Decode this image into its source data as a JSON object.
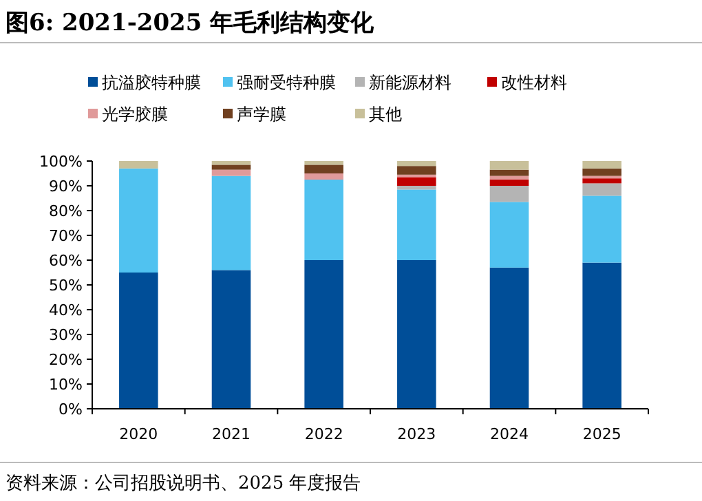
{
  "chart_data": {
    "type": "bar",
    "stacked": true,
    "title": "图6:  2021-2025 年毛利结构变化",
    "annotations": [
      "资料来源：公司招股说明书、2025 年度报告"
    ],
    "categories": [
      "2020",
      "2021",
      "2022",
      "2023",
      "2024",
      "2025"
    ],
    "series": [
      {
        "name": "抗溢胶特种膜",
        "color": "#004e98",
        "values": [
          55,
          56,
          60,
          60,
          57,
          59
        ]
      },
      {
        "name": "强耐受特种膜",
        "color": "#50c2f0",
        "values": [
          42,
          38,
          32.5,
          28.5,
          26.5,
          27
        ]
      },
      {
        "name": "新能源材料",
        "color": "#b4b4b4",
        "values": [
          0,
          0,
          0,
          1.5,
          6.5,
          5
        ]
      },
      {
        "name": "改性材料",
        "color": "#c00000",
        "values": [
          0,
          0,
          0,
          3.5,
          2.5,
          2
        ]
      },
      {
        "name": "光学胶膜",
        "color": "#e09a9a",
        "values": [
          0,
          2.5,
          2.5,
          1,
          1.5,
          1
        ]
      },
      {
        "name": "声学膜",
        "color": "#704020",
        "values": [
          0,
          2,
          3.5,
          3.5,
          2.5,
          3
        ]
      },
      {
        "name": "其他",
        "color": "#c8c09a",
        "values": [
          3,
          1.5,
          1.5,
          2,
          3.5,
          3
        ]
      }
    ],
    "ylim": [
      0,
      100
    ],
    "yticks": [
      {
        "value": 0,
        "label": "0%"
      },
      {
        "value": 10,
        "label": "10%"
      },
      {
        "value": 20,
        "label": "20%"
      },
      {
        "value": 30,
        "label": "30%"
      },
      {
        "value": 40,
        "label": "40%"
      },
      {
        "value": 50,
        "label": "50%"
      },
      {
        "value": 60,
        "label": "60%"
      },
      {
        "value": 70,
        "label": "70%"
      },
      {
        "value": 80,
        "label": "80%"
      },
      {
        "value": 90,
        "label": "90%"
      },
      {
        "value": 100,
        "label": "100%"
      }
    ],
    "legend": "top",
    "grid": false
  }
}
